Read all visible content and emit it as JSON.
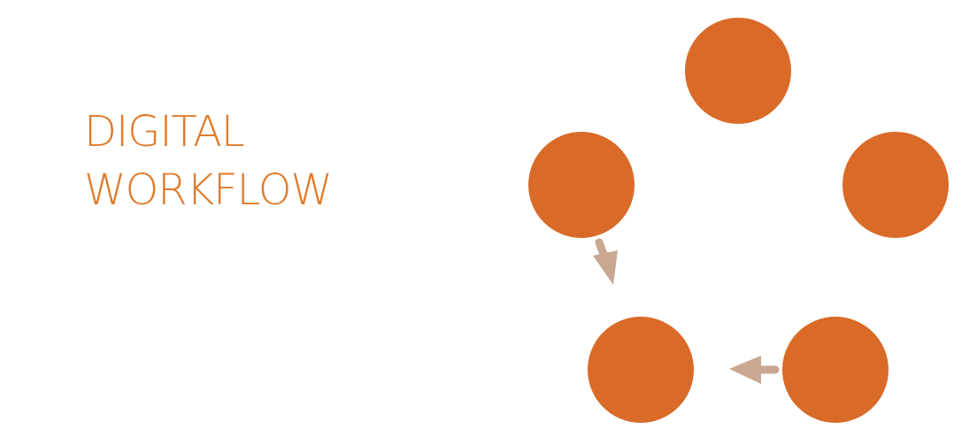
{
  "title": {
    "line1": "DIGITAL",
    "line2": "WORKFLOW",
    "color": "#e07a2a"
  },
  "diagram": {
    "node_color": "#d96a28",
    "arrow_color": "#c9a791",
    "nodes": [
      {
        "id": "node-top"
      },
      {
        "id": "node-left"
      },
      {
        "id": "node-right"
      },
      {
        "id": "node-bottom-left"
      },
      {
        "id": "node-bottom-right"
      }
    ],
    "arrows": [
      {
        "from": "node-left",
        "to": "node-bottom-left"
      },
      {
        "from": "node-bottom-right",
        "to": "node-bottom-left"
      }
    ]
  }
}
